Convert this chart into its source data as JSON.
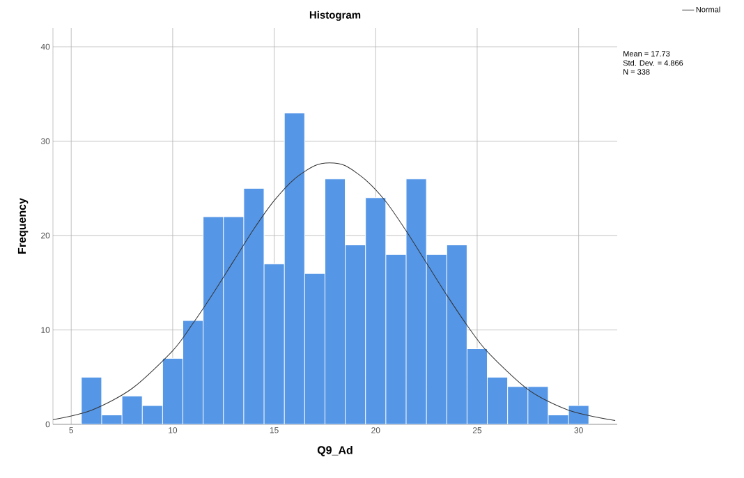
{
  "chart_data": {
    "type": "histogram",
    "title": "Histogram",
    "xlabel": "Q9_Ad",
    "ylabel": "Frequency",
    "bins": [
      5.5,
      6.5,
      7.5,
      8.5,
      9.5,
      10.5,
      11.5,
      12.5,
      13.5,
      14.5,
      15.5,
      16.5,
      17.5,
      18.5,
      19.5,
      20.5,
      21.5,
      22.5,
      23.5,
      24.5,
      25.5,
      26.5,
      27.5,
      28.5,
      29.5,
      30.5
    ],
    "values": [
      5,
      1,
      3,
      2,
      7,
      11,
      22,
      22,
      25,
      17,
      33,
      16,
      26,
      19,
      24,
      18,
      26,
      18,
      19,
      8,
      5,
      4,
      4,
      1,
      2
    ],
    "color": "#5596e6",
    "series": [
      {
        "name": "Normal",
        "type": "line",
        "color": "#333333",
        "x": [
          4.1,
          6,
          8,
          10,
          11,
          12,
          13,
          14,
          15,
          16,
          17,
          17.73,
          18.5,
          19.5,
          20.5,
          21.5,
          22.5,
          23.5,
          24.5,
          25.5,
          27.5,
          29.5,
          31.8
        ],
        "values": [
          0.5,
          1.5,
          3.8,
          7.8,
          10.7,
          13.9,
          17.3,
          20.7,
          23.7,
          26.0,
          27.4,
          27.7,
          27.4,
          25.9,
          23.6,
          20.5,
          17.1,
          13.7,
          10.5,
          7.7,
          3.7,
          1.5,
          0.4
        ]
      }
    ],
    "xlim": [
      4.1,
      31.9
    ],
    "ylim": [
      0,
      42
    ],
    "xticks": [
      5,
      10,
      15,
      20,
      25,
      30
    ],
    "yticks": [
      0,
      10,
      20,
      30,
      40
    ],
    "grid": true,
    "legend": "top right",
    "annotations": [
      "Mean = 17.73",
      "Std. Dev. = 4.866",
      "N = 338"
    ]
  }
}
